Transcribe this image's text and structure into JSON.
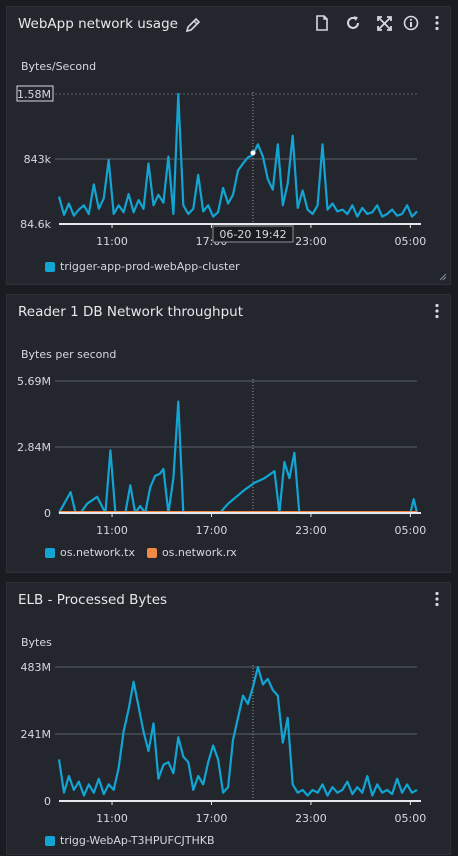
{
  "colors": {
    "series_blue": "#12a4d2",
    "series_orange": "#f08a45",
    "grid": "#5b6069",
    "baseline": "#e6e9ec",
    "cursor": "#9aa0a8"
  },
  "icons": {
    "edit": "pencil-icon",
    "report": "document-icon",
    "refresh": "refresh-icon",
    "expand": "expand-icon",
    "info": "info-icon",
    "menu": "kebab-menu-icon"
  },
  "panels": [
    {
      "title": "WebApp network usage",
      "unit": "Bytes/Second",
      "yticks": [
        "1.58M",
        "843k",
        "84.6k"
      ],
      "xticks": [
        "11:00",
        "17:00",
        "23:00",
        "05:00"
      ],
      "tooltip": "06-20 19:42",
      "legend": [
        "trigger-app-prod-webApp-cluster"
      ]
    },
    {
      "title": "Reader 1 DB Network throughput",
      "unit": "Bytes per second",
      "yticks": [
        "5.69M",
        "2.84M",
        "0"
      ],
      "xticks": [
        "11:00",
        "17:00",
        "23:00",
        "05:00"
      ],
      "legend": [
        "os.network.tx",
        "os.network.rx"
      ]
    },
    {
      "title": "ELB - Processed Bytes",
      "unit": "Bytes",
      "yticks": [
        "483M",
        "241M",
        "0"
      ],
      "xticks": [
        "11:00",
        "17:00",
        "23:00",
        "05:00"
      ],
      "legend": [
        "trigg-WebAp-T3HPUFCJTHKB"
      ]
    }
  ],
  "chart_data": [
    {
      "type": "line",
      "title": "WebApp network usage",
      "ylabel": "Bytes/Second",
      "ylim": [
        84600,
        1580000
      ],
      "yticks": [
        "84.6k",
        "843k",
        "1.58M"
      ],
      "xticks": [
        "11:00",
        "17:00",
        "23:00",
        "05:00"
      ],
      "grid": true,
      "legend_position": "bottom",
      "cursor_time": "06-20 19:42",
      "series": [
        {
          "name": "trigger-app-prod-webApp-cluster",
          "color": "#12a4d2",
          "x": [
            7.8,
            8.1,
            8.4,
            8.7,
            9.0,
            9.3,
            9.6,
            9.9,
            10.2,
            10.5,
            10.8,
            11.1,
            11.4,
            11.7,
            12.0,
            12.3,
            12.6,
            12.9,
            13.2,
            13.5,
            13.8,
            14.1,
            14.4,
            14.7,
            15.0,
            15.3,
            15.6,
            15.9,
            16.2,
            16.5,
            16.8,
            17.1,
            17.4,
            17.7,
            18.0,
            18.3,
            18.6,
            18.9,
            19.2,
            19.5,
            19.8,
            20.1,
            20.4,
            20.7,
            21.0,
            21.3,
            21.6,
            21.9,
            22.2,
            22.5,
            22.8,
            23.1,
            23.4,
            23.7,
            24.0,
            24.3,
            24.6,
            24.9,
            25.2,
            25.5,
            25.8,
            26.1,
            26.4,
            26.7,
            27.0,
            27.3,
            27.6,
            27.9,
            28.2,
            28.5,
            28.8,
            29.1,
            29.4
          ],
          "values": [
            400000,
            190000,
            320000,
            180000,
            250000,
            300000,
            200000,
            540000,
            260000,
            380000,
            820000,
            200000,
            300000,
            220000,
            430000,
            220000,
            360000,
            260000,
            780000,
            300000,
            420000,
            330000,
            860000,
            200000,
            1580000,
            300000,
            200000,
            260000,
            650000,
            230000,
            300000,
            170000,
            220000,
            500000,
            320000,
            420000,
            700000,
            780000,
            850000,
            880000,
            1000000,
            860000,
            600000,
            480000,
            1000000,
            300000,
            550000,
            1100000,
            270000,
            470000,
            250000,
            200000,
            300000,
            1000000,
            250000,
            320000,
            230000,
            250000,
            200000,
            300000,
            170000,
            270000,
            200000,
            220000,
            300000,
            170000,
            200000,
            250000,
            180000,
            200000,
            300000,
            170000,
            230000
          ]
        }
      ]
    },
    {
      "type": "line",
      "title": "Reader 1 DB Network throughput",
      "ylabel": "Bytes per second",
      "ylim": [
        0,
        5690000
      ],
      "yticks": [
        "0",
        "2.84M",
        "5.69M"
      ],
      "xticks": [
        "11:00",
        "17:00",
        "23:00",
        "05:00"
      ],
      "grid": true,
      "legend_position": "bottom",
      "series": [
        {
          "name": "os.network.tx",
          "color": "#12a4d2",
          "x": [
            7.8,
            8.5,
            8.8,
            9.1,
            9.5,
            10.1,
            10.6,
            10.9,
            11.2,
            11.5,
            11.8,
            12.1,
            12.4,
            12.7,
            13.0,
            13.3,
            13.6,
            13.9,
            14.1,
            14.4,
            14.7,
            15.0,
            15.3,
            15.6,
            15.9,
            16.2,
            16.5,
            16.8,
            17.5,
            18.0,
            19.0,
            19.6,
            20.2,
            20.8,
            21.1,
            21.4,
            21.7,
            22.0,
            22.3,
            22.6,
            22.9,
            23.2,
            23.5,
            23.8,
            24.1,
            24.5,
            25.0,
            26.0,
            27.0,
            28.0,
            29.0,
            29.2,
            29.4
          ],
          "values": [
            0,
            900000,
            0,
            0,
            400000,
            700000,
            0,
            2700000,
            0,
            0,
            0,
            1200000,
            0,
            300000,
            0,
            1100000,
            1600000,
            1700000,
            1900000,
            0,
            1500000,
            4800000,
            0,
            0,
            0,
            0,
            0,
            0,
            0,
            400000,
            1000000,
            1300000,
            1500000,
            1800000,
            0,
            2200000,
            1500000,
            2600000,
            0,
            0,
            0,
            0,
            0,
            0,
            0,
            0,
            0,
            0,
            0,
            0,
            0,
            600000,
            0
          ]
        },
        {
          "name": "os.network.rx",
          "color": "#f08a45",
          "x": [
            7.8,
            29.4
          ],
          "values": [
            40000,
            40000
          ]
        }
      ]
    },
    {
      "type": "line",
      "title": "ELB - Processed Bytes",
      "ylabel": "Bytes",
      "ylim": [
        0,
        483000000
      ],
      "yticks": [
        "0",
        "241M",
        "483M"
      ],
      "xticks": [
        "11:00",
        "17:00",
        "23:00",
        "05:00"
      ],
      "grid": true,
      "legend_position": "bottom",
      "series": [
        {
          "name": "trigg-WebAp-T3HPUFCJTHKB",
          "color": "#12a4d2",
          "x": [
            7.8,
            8.1,
            8.4,
            8.7,
            9.0,
            9.3,
            9.6,
            9.9,
            10.2,
            10.5,
            10.8,
            11.1,
            11.4,
            11.7,
            12.0,
            12.3,
            12.6,
            12.9,
            13.2,
            13.5,
            13.8,
            14.1,
            14.4,
            14.7,
            15.0,
            15.3,
            15.6,
            15.9,
            16.2,
            16.5,
            16.8,
            17.1,
            17.4,
            17.7,
            18.0,
            18.3,
            18.6,
            18.9,
            19.2,
            19.5,
            19.8,
            20.1,
            20.4,
            20.7,
            21.0,
            21.3,
            21.6,
            21.9,
            22.2,
            22.5,
            22.8,
            23.1,
            23.4,
            23.7,
            24.0,
            24.3,
            24.6,
            24.9,
            25.2,
            25.5,
            25.8,
            26.1,
            26.4,
            26.7,
            27.0,
            27.3,
            27.6,
            27.9,
            28.2,
            28.5,
            28.8,
            29.1,
            29.4
          ],
          "values": [
            150000000,
            30000000,
            90000000,
            40000000,
            70000000,
            20000000,
            60000000,
            30000000,
            80000000,
            25000000,
            60000000,
            40000000,
            120000000,
            250000000,
            330000000,
            430000000,
            340000000,
            250000000,
            180000000,
            280000000,
            80000000,
            130000000,
            140000000,
            100000000,
            230000000,
            160000000,
            140000000,
            40000000,
            90000000,
            60000000,
            140000000,
            200000000,
            150000000,
            30000000,
            50000000,
            220000000,
            300000000,
            380000000,
            350000000,
            410000000,
            483000000,
            420000000,
            440000000,
            400000000,
            380000000,
            210000000,
            300000000,
            60000000,
            30000000,
            40000000,
            20000000,
            40000000,
            30000000,
            60000000,
            20000000,
            50000000,
            30000000,
            40000000,
            70000000,
            25000000,
            50000000,
            30000000,
            90000000,
            20000000,
            60000000,
            30000000,
            40000000,
            25000000,
            80000000,
            30000000,
            60000000,
            30000000,
            40000000
          ]
        }
      ]
    }
  ]
}
